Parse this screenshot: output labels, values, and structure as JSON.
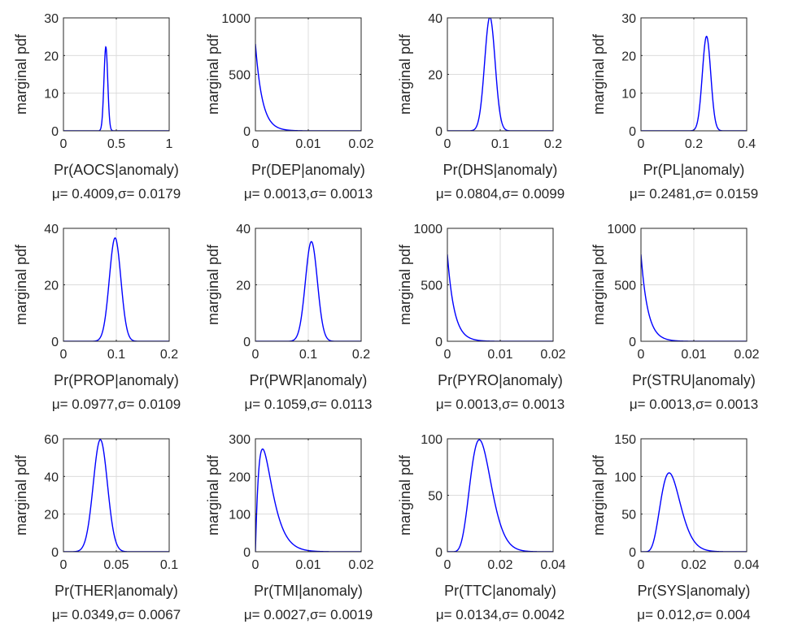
{
  "chart_data": [
    {
      "type": "line",
      "ylabel": "marginal pdf",
      "xlabel": "Pr(AOCS|anomaly)",
      "stats": "μ= 0.4009,σ= 0.0179",
      "mean": 0.4009,
      "sd": 0.0179,
      "shape": "normal",
      "xlim": [
        0,
        1
      ],
      "ylim": [
        0,
        30
      ],
      "xticks": [
        0,
        0.5,
        1
      ],
      "xtick_labels": [
        "0",
        "0.5",
        "1"
      ],
      "yticks": [
        0,
        10,
        20,
        30
      ],
      "ytick_labels": [
        "0",
        "10",
        "20",
        "30"
      ],
      "grid": true
    },
    {
      "type": "line",
      "ylabel": "marginal pdf",
      "xlabel": "Pr(DEP|anomaly)",
      "stats": "μ= 0.0013,σ= 0.0013",
      "mean": 0.0013,
      "sd": 0.0013,
      "shape": "exponential",
      "xlim": [
        0,
        0.02
      ],
      "ylim": [
        0,
        1000
      ],
      "xticks": [
        0,
        0.01,
        0.02
      ],
      "xtick_labels": [
        "0",
        "0.01",
        "0.02"
      ],
      "yticks": [
        0,
        500,
        1000
      ],
      "ytick_labels": [
        "0",
        "500",
        "1000"
      ],
      "grid": true
    },
    {
      "type": "line",
      "ylabel": "marginal pdf",
      "xlabel": "Pr(DHS|anomaly)",
      "stats": "μ= 0.0804,σ= 0.0099",
      "mean": 0.0804,
      "sd": 0.0099,
      "shape": "normal",
      "xlim": [
        0,
        0.2
      ],
      "ylim": [
        0,
        40
      ],
      "xticks": [
        0,
        0.1,
        0.2
      ],
      "xtick_labels": [
        "0",
        "0.1",
        "0.2"
      ],
      "yticks": [
        0,
        20,
        40
      ],
      "ytick_labels": [
        "0",
        "20",
        "40"
      ],
      "grid": true
    },
    {
      "type": "line",
      "ylabel": "marginal pdf",
      "xlabel": "Pr(PL|anomaly)",
      "stats": "μ= 0.2481,σ= 0.0159",
      "mean": 0.2481,
      "sd": 0.0159,
      "shape": "normal",
      "xlim": [
        0,
        0.4
      ],
      "ylim": [
        0,
        30
      ],
      "xticks": [
        0,
        0.2,
        0.4
      ],
      "xtick_labels": [
        "0",
        "0.2",
        "0.4"
      ],
      "yticks": [
        0,
        10,
        20,
        30
      ],
      "ytick_labels": [
        "0",
        "10",
        "20",
        "30"
      ],
      "grid": true
    },
    {
      "type": "line",
      "ylabel": "marginal pdf",
      "xlabel": "Pr(PROP|anomaly)",
      "stats": "μ= 0.0977,σ= 0.0109",
      "mean": 0.0977,
      "sd": 0.0109,
      "shape": "normal",
      "xlim": [
        0,
        0.2
      ],
      "ylim": [
        0,
        40
      ],
      "xticks": [
        0,
        0.1,
        0.2
      ],
      "xtick_labels": [
        "0",
        "0.1",
        "0.2"
      ],
      "yticks": [
        0,
        20,
        40
      ],
      "ytick_labels": [
        "0",
        "20",
        "40"
      ],
      "grid": true
    },
    {
      "type": "line",
      "ylabel": "marginal pdf",
      "xlabel": "Pr(PWR|anomaly)",
      "stats": "μ= 0.1059,σ= 0.0113",
      "mean": 0.1059,
      "sd": 0.0113,
      "shape": "normal",
      "xlim": [
        0,
        0.2
      ],
      "ylim": [
        0,
        40
      ],
      "xticks": [
        0,
        0.1,
        0.2
      ],
      "xtick_labels": [
        "0",
        "0.1",
        "0.2"
      ],
      "yticks": [
        0,
        20,
        40
      ],
      "ytick_labels": [
        "0",
        "20",
        "40"
      ],
      "grid": true
    },
    {
      "type": "line",
      "ylabel": "marginal pdf",
      "xlabel": "Pr(PYRO|anomaly)",
      "stats": "μ= 0.0013,σ= 0.0013",
      "mean": 0.0013,
      "sd": 0.0013,
      "shape": "exponential",
      "xlim": [
        0,
        0.02
      ],
      "ylim": [
        0,
        1000
      ],
      "xticks": [
        0,
        0.01,
        0.02
      ],
      "xtick_labels": [
        "0",
        "0.01",
        "0.02"
      ],
      "yticks": [
        0,
        500,
        1000
      ],
      "ytick_labels": [
        "0",
        "500",
        "1000"
      ],
      "grid": true
    },
    {
      "type": "line",
      "ylabel": "marginal pdf",
      "xlabel": "Pr(STRU|anomaly)",
      "stats": "μ= 0.0013,σ= 0.0013",
      "mean": 0.0013,
      "sd": 0.0013,
      "shape": "exponential",
      "xlim": [
        0,
        0.02
      ],
      "ylim": [
        0,
        1000
      ],
      "xticks": [
        0,
        0.01,
        0.02
      ],
      "xtick_labels": [
        "0",
        "0.01",
        "0.02"
      ],
      "yticks": [
        0,
        500,
        1000
      ],
      "ytick_labels": [
        "0",
        "500",
        "1000"
      ],
      "grid": true
    },
    {
      "type": "line",
      "ylabel": "marginal pdf",
      "xlabel": "Pr(THER|anomaly)",
      "stats": "μ= 0.0349,σ= 0.0067",
      "mean": 0.0349,
      "sd": 0.0067,
      "shape": "normal",
      "xlim": [
        0,
        0.1
      ],
      "ylim": [
        0,
        60
      ],
      "xticks": [
        0,
        0.05,
        0.1
      ],
      "xtick_labels": [
        "0",
        "0.05",
        "0.1"
      ],
      "yticks": [
        0,
        20,
        40,
        60
      ],
      "ytick_labels": [
        "0",
        "20",
        "40",
        "60"
      ],
      "grid": true
    },
    {
      "type": "line",
      "ylabel": "marginal pdf",
      "xlabel": "Pr(TMI|anomaly)",
      "stats": "μ= 0.0027,σ= 0.0019",
      "mean": 0.0027,
      "sd": 0.0019,
      "shape": "gamma",
      "xlim": [
        0,
        0.02
      ],
      "ylim": [
        0,
        300
      ],
      "xticks": [
        0,
        0.01,
        0.02
      ],
      "xtick_labels": [
        "0",
        "0.01",
        "0.02"
      ],
      "yticks": [
        0,
        100,
        200,
        300
      ],
      "ytick_labels": [
        "0",
        "100",
        "200",
        "300"
      ],
      "grid": true
    },
    {
      "type": "line",
      "ylabel": "marginal pdf",
      "xlabel": "Pr(TTC|anomaly)",
      "stats": "μ= 0.0134,σ= 0.0042",
      "mean": 0.0134,
      "sd": 0.0042,
      "shape": "gamma",
      "xlim": [
        0,
        0.04
      ],
      "ylim": [
        0,
        100
      ],
      "xticks": [
        0,
        0.02,
        0.04
      ],
      "xtick_labels": [
        "0",
        "0.02",
        "0.04"
      ],
      "yticks": [
        0,
        50,
        100
      ],
      "ytick_labels": [
        "0",
        "50",
        "100"
      ],
      "grid": true
    },
    {
      "type": "line",
      "ylabel": "marginal pdf",
      "xlabel": "Pr(SYS|anomaly)",
      "stats": "μ= 0.012,σ= 0.004",
      "mean": 0.012,
      "sd": 0.004,
      "shape": "gamma",
      "xlim": [
        0,
        0.04
      ],
      "ylim": [
        0,
        150
      ],
      "xticks": [
        0,
        0.02,
        0.04
      ],
      "xtick_labels": [
        "0",
        "0.02",
        "0.04"
      ],
      "yticks": [
        0,
        50,
        100,
        150
      ],
      "ytick_labels": [
        "0",
        "50",
        "100",
        "150"
      ],
      "grid": true
    }
  ],
  "colors": {
    "curve": "#0000ff",
    "axes": "#262626",
    "grid": "#dcdcdc"
  }
}
